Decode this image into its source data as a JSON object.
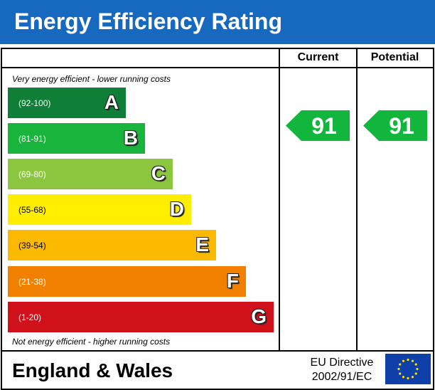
{
  "header": {
    "title": "Energy Efficiency Rating"
  },
  "columns": {
    "current": "Current",
    "potential": "Potential"
  },
  "captions": {
    "top": "Very energy efficient - lower running costs",
    "bottom": "Not energy efficient - higher running costs"
  },
  "chart_data": {
    "type": "bar",
    "bands": [
      {
        "letter": "A",
        "range": "(92-100)",
        "min": 92,
        "max": 100,
        "color": "#0f7f37"
      },
      {
        "letter": "B",
        "range": "(81-91)",
        "min": 81,
        "max": 91,
        "color": "#19b43b"
      },
      {
        "letter": "C",
        "range": "(69-80)",
        "min": 69,
        "max": 80,
        "color": "#8cc63f"
      },
      {
        "letter": "D",
        "range": "(55-68)",
        "min": 55,
        "max": 68,
        "color": "#ffee00"
      },
      {
        "letter": "E",
        "range": "(39-54)",
        "min": 39,
        "max": 54,
        "color": "#fbb900"
      },
      {
        "letter": "F",
        "range": "(21-38)",
        "min": 21,
        "max": 38,
        "color": "#f17f00"
      },
      {
        "letter": "G",
        "range": "(1-20)",
        "min": 1,
        "max": 20,
        "color": "#d0101a"
      }
    ],
    "current": 91,
    "potential": 91,
    "rating_color": "#13b63c"
  },
  "footer": {
    "region": "England & Wales",
    "directive_line1": "EU Directive",
    "directive_line2": "2002/91/EC"
  },
  "flag": {
    "icon": "eu-flag-icon",
    "background": "#0f3fa8",
    "star_color": "#ffdd00"
  }
}
